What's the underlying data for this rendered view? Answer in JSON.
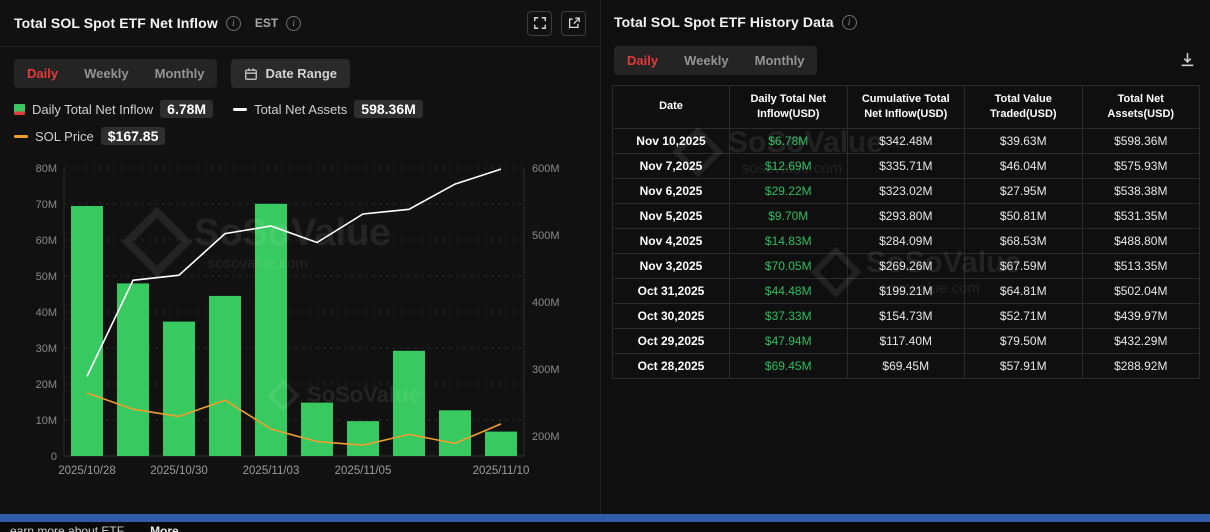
{
  "brand": {
    "name": "SoSoValue",
    "domain": "sosovalue.com"
  },
  "left_panel": {
    "title": "Total SOL Spot ETF Net Inflow",
    "est_label": "EST",
    "tabs": {
      "daily": "Daily",
      "weekly": "Weekly",
      "monthly": "Monthly"
    },
    "date_range_label": "Date Range",
    "legend": {
      "inflow_label": "Daily Total Net Inflow",
      "inflow_value": "6.78M",
      "assets_label": "Total Net Assets",
      "assets_value": "598.36M",
      "price_label": "SOL Price",
      "price_value": "$167.85"
    }
  },
  "chart_data": {
    "type": "bar+line",
    "title": "Total SOL Spot ETF Net Inflow",
    "x": [
      "2025/10/28",
      "2025/10/29",
      "2025/10/30",
      "2025/10/31",
      "2025/11/03",
      "2025/11/04",
      "2025/11/05",
      "2025/11/06",
      "2025/11/07",
      "2025/11/10"
    ],
    "x_ticks": {
      "indices": [
        0,
        2,
        4,
        6,
        9
      ],
      "labels": [
        "2025/10/28",
        "2025/10/30",
        "2025/11/03",
        "2025/11/05",
        "2025/11/10"
      ]
    },
    "series": [
      {
        "name": "Daily Total Net Inflow (USD M)",
        "type": "bar",
        "axis": "left",
        "color": "#38c960",
        "values": [
          69.45,
          47.94,
          37.33,
          44.48,
          70.05,
          14.83,
          9.7,
          29.22,
          12.69,
          6.78
        ]
      },
      {
        "name": "Total Net Assets (USD M)",
        "type": "line",
        "axis": "right",
        "color": "#ffffff",
        "values": [
          288.92,
          432.29,
          439.97,
          502.04,
          513.35,
          488.8,
          531.35,
          538.38,
          575.93,
          598.36
        ]
      },
      {
        "name": "SOL Price (USD, approx from curve)",
        "type": "line",
        "axis": "price",
        "color": "#ef9f2f",
        "values": [
          185,
          176,
          172,
          181,
          165,
          158,
          156,
          162,
          157,
          167.85
        ]
      }
    ],
    "left_axis": {
      "min": 0,
      "max": 80,
      "tick_values": [
        0,
        10,
        20,
        30,
        40,
        50,
        60,
        70,
        80
      ],
      "tick_labels": [
        "0",
        "10M",
        "20M",
        "30M",
        "40M",
        "50M",
        "60M",
        "70M",
        "80M"
      ]
    },
    "right_axis": {
      "scale_min": 170,
      "scale_max": 600,
      "tick_values": [
        200,
        300,
        400,
        500,
        600
      ],
      "tick_labels": [
        "200M",
        "300M",
        "400M",
        "500M",
        "600M"
      ]
    },
    "price_axis": {
      "scale_min": 150,
      "scale_max": 310
    },
    "grid": true,
    "legend_position": "top"
  },
  "right_panel": {
    "title": "Total SOL Spot ETF History Data",
    "tabs": {
      "daily": "Daily",
      "weekly": "Weekly",
      "monthly": "Monthly"
    },
    "table": {
      "columns": [
        "Date",
        "Daily Total Net\nInflow(USD)",
        "Cumulative Total\nNet Inflow(USD)",
        "Total Value\nTraded(USD)",
        "Total Net\nAssets(USD)"
      ],
      "rows": [
        {
          "date": "Nov 10,2025",
          "inflow": "$6.78M",
          "cumulative": "$342.48M",
          "traded": "$39.63M",
          "assets": "$598.36M"
        },
        {
          "date": "Nov 7,2025",
          "inflow": "$12.69M",
          "cumulative": "$335.71M",
          "traded": "$46.04M",
          "assets": "$575.93M"
        },
        {
          "date": "Nov 6,2025",
          "inflow": "$29.22M",
          "cumulative": "$323.02M",
          "traded": "$27.95M",
          "assets": "$538.38M"
        },
        {
          "date": "Nov 5,2025",
          "inflow": "$9.70M",
          "cumulative": "$293.80M",
          "traded": "$50.81M",
          "assets": "$531.35M"
        },
        {
          "date": "Nov 4,2025",
          "inflow": "$14.83M",
          "cumulative": "$284.09M",
          "traded": "$68.53M",
          "assets": "$488.80M"
        },
        {
          "date": "Nov 3,2025",
          "inflow": "$70.05M",
          "cumulative": "$269.26M",
          "traded": "$67.59M",
          "assets": "$513.35M"
        },
        {
          "date": "Oct 31,2025",
          "inflow": "$44.48M",
          "cumulative": "$199.21M",
          "traded": "$64.81M",
          "assets": "$502.04M"
        },
        {
          "date": "Oct 30,2025",
          "inflow": "$37.33M",
          "cumulative": "$154.73M",
          "traded": "$52.71M",
          "assets": "$439.97M"
        },
        {
          "date": "Oct 29,2025",
          "inflow": "$47.94M",
          "cumulative": "$117.40M",
          "traded": "$79.50M",
          "assets": "$432.29M"
        },
        {
          "date": "Oct 28,2025",
          "inflow": "$69.45M",
          "cumulative": "$69.45M",
          "traded": "$57.91M",
          "assets": "$288.92M"
        }
      ]
    }
  },
  "footer": {
    "label": "earn more about ETF",
    "more_label": "More"
  },
  "colors": {
    "green": "#38c960",
    "table_green": "#2fbd5f",
    "red_accent": "#e23a3a",
    "orange": "#ef9f2f",
    "white_line": "#ffffff",
    "footer_blue": "#2e5ca6"
  }
}
